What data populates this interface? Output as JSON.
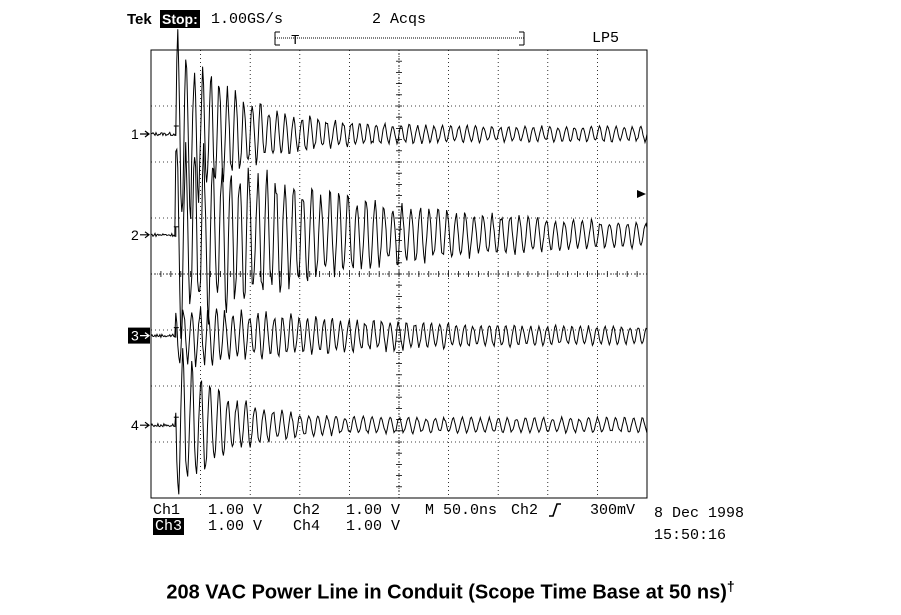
{
  "header": {
    "brand": "Tek",
    "mode": "Stop:",
    "sample_rate": "1.00GS/s",
    "acqs": "2 Acqs",
    "trigger_marker": "T",
    "label": "LP5"
  },
  "channel_markers": [
    "1",
    "2",
    "3",
    "4"
  ],
  "footer": {
    "row1": [
      {
        "label": "Ch1",
        "value": "1.00 V"
      },
      {
        "label": "Ch2",
        "value": "1.00 V"
      },
      {
        "label": "M 50.0ns",
        "value": ""
      },
      {
        "label": "Ch2",
        "value": "300mV"
      }
    ],
    "row2": [
      {
        "label": "Ch3",
        "value": "1.00 V"
      },
      {
        "label": "Ch4",
        "value": "1.00 V"
      }
    ],
    "date": "8 Dec 1998",
    "time": "15:50:16"
  },
  "caption": "208 VAC Power Line in Conduit (Scope Time Base at 50 ns)",
  "caption_mark": "†",
  "chart_data": {
    "type": "line",
    "title": "208 VAC Power Line in Conduit (Scope Time Base at 50 ns)",
    "x_units": "ns",
    "time_per_div_ns": 50,
    "x_divisions": 10,
    "xlim": [
      0,
      500
    ],
    "trigger_time_ns": 25,
    "series": [
      {
        "name": "Ch1",
        "volts_per_div": 1.0,
        "baseline_div": 6.5,
        "burst_amp_div": 1.5,
        "decay_ns": 60,
        "tail_amp_div": 0.12,
        "freq_per_ns": 0.12
      },
      {
        "name": "Ch2",
        "volts_per_div": 1.0,
        "baseline_div": 4.7,
        "burst_amp_div": 1.5,
        "decay_ns": 160,
        "tail_amp_div": 0.12,
        "freq_per_ns": 0.11
      },
      {
        "name": "Ch3",
        "volts_per_div": 1.0,
        "baseline_div": 2.9,
        "burst_amp_div": 0.4,
        "decay_ns": 200,
        "tail_amp_div": 0.1,
        "freq_per_ns": 0.12
      },
      {
        "name": "Ch4",
        "volts_per_div": 1.0,
        "baseline_div": 1.3,
        "burst_amp_div": 1.2,
        "decay_ns": 45,
        "tail_amp_div": 0.12,
        "freq_per_ns": 0.11
      }
    ],
    "grid": true
  }
}
